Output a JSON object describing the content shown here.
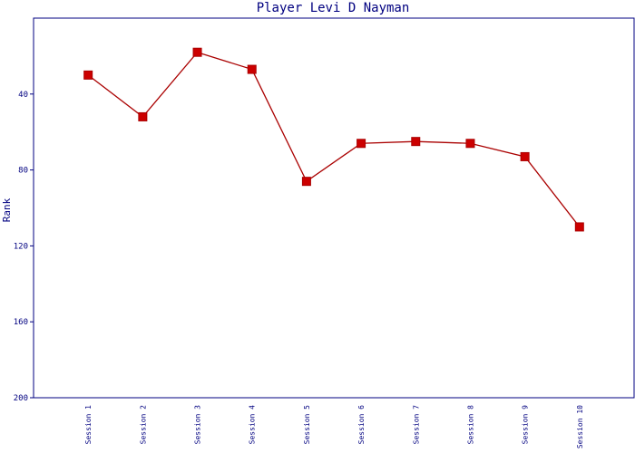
{
  "chart_data": {
    "type": "line",
    "title": "Player Levi D Nayman",
    "y_label": "Rank",
    "categories": [
      "Session 1",
      "Session 2",
      "Session 3",
      "Session 4",
      "Session 5",
      "Session 6",
      "Session 7",
      "Session 8",
      "Session 9",
      "Session 10"
    ],
    "series": [
      {
        "name": "Rank",
        "color": "#aa0000",
        "marker_color": "#cc0000",
        "values": [
          30,
          52,
          18,
          27,
          86,
          66,
          65,
          66,
          73,
          110
        ]
      }
    ],
    "ylim": [
      0,
      200
    ],
    "yticks": [
      40,
      80,
      120,
      160,
      200
    ],
    "y_inverted": true,
    "grid": false
  }
}
